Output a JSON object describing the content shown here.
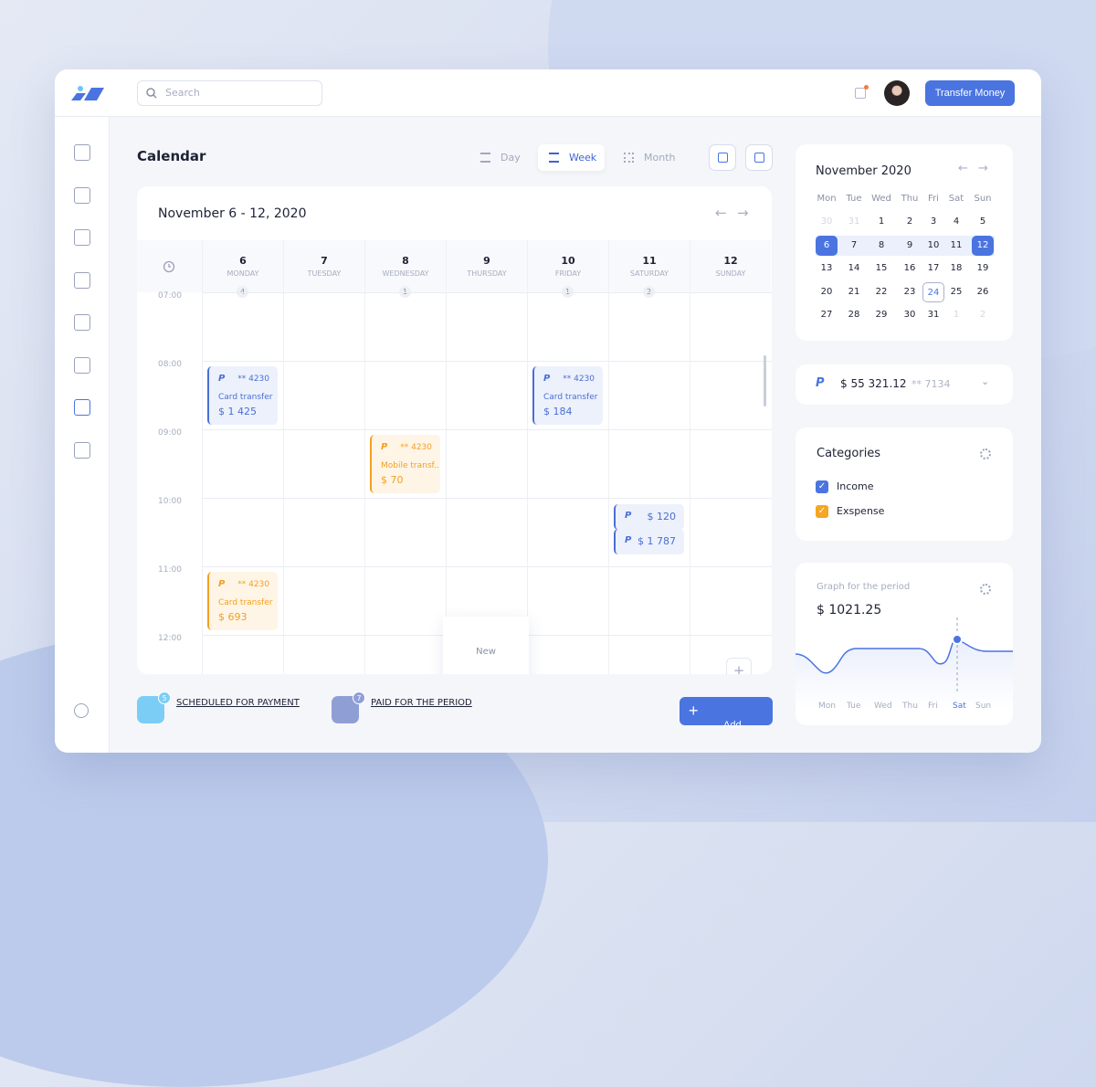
{
  "header": {
    "search_placeholder": "Search",
    "transfer_button": "Transfer Money"
  },
  "sidebar": {
    "items": [
      "dashboard-icon",
      "chart-icon",
      "wallet-icon",
      "exchange-icon",
      "clipboard-icon",
      "buildings-icon",
      "calendar-icon",
      "gear-icon"
    ],
    "active": 6,
    "bottom": "help-icon"
  },
  "main": {
    "title": "Calendar",
    "views": [
      "Day",
      "Week",
      "Month"
    ],
    "active_view": 1,
    "range": "November 6 - 12, 2020",
    "days": [
      {
        "num": "6",
        "name": "MONDAY",
        "count": "4"
      },
      {
        "num": "7",
        "name": "TUESDAY",
        "count": ""
      },
      {
        "num": "8",
        "name": "WEDNESDAY",
        "count": "1"
      },
      {
        "num": "9",
        "name": "THURSDAY",
        "count": ""
      },
      {
        "num": "10",
        "name": "FRIDAY",
        "count": "1"
      },
      {
        "num": "11",
        "name": "SATURDAY",
        "count": "2"
      },
      {
        "num": "12",
        "name": "SUNDAY",
        "count": ""
      }
    ],
    "times": [
      "07:00",
      "08:00",
      "09:00",
      "10:00",
      "11:00",
      "12:00"
    ],
    "events": [
      {
        "day": 0,
        "time": "08:00",
        "color": "blue",
        "account": "** 4230",
        "label": "Card transfer",
        "amount": "$ 1 425"
      },
      {
        "day": 4,
        "time": "08:00",
        "color": "blue",
        "account": "** 4230",
        "label": "Card transfer",
        "amount": "$ 184"
      },
      {
        "day": 2,
        "time": "09:00",
        "color": "orange",
        "account": "** 4230",
        "label": "Mobile transf..",
        "amount": "$ 70"
      },
      {
        "day": 5,
        "time": "10:00",
        "color": "blue",
        "account": "$ 120",
        "small": true
      },
      {
        "day": 5,
        "time": "10:20",
        "color": "blue",
        "account": "$ 1 787",
        "small": true
      },
      {
        "day": 0,
        "time": "11:00",
        "color": "orange",
        "account": "** 4230",
        "label": "Card transfer",
        "amount": "$ 693"
      }
    ],
    "new_label": "New",
    "footer": {
      "scheduled": {
        "label": "SCHEDULED FOR PAYMENT",
        "count": "5"
      },
      "paid": {
        "label": "PAID FOR THE PERIOD",
        "count": "7"
      },
      "add": "Add"
    }
  },
  "mini_calendar": {
    "title": "November 2020",
    "dows": [
      "Mon",
      "Tue",
      "Wed",
      "Thu",
      "Fri",
      "Sat",
      "Sun"
    ],
    "weeks": [
      [
        "30",
        "31",
        "1",
        "2",
        "3",
        "4",
        "5"
      ],
      [
        "6",
        "7",
        "8",
        "9",
        "10",
        "11",
        "12"
      ],
      [
        "13",
        "14",
        "15",
        "16",
        "17",
        "18",
        "19"
      ],
      [
        "20",
        "21",
        "22",
        "23",
        "24",
        "25",
        "26"
      ],
      [
        "27",
        "28",
        "29",
        "30",
        "31",
        "1",
        "2"
      ]
    ],
    "selected_range": [
      "6",
      "12"
    ],
    "today": "24"
  },
  "account": {
    "balance": "$ 55 321.12",
    "number": "** 7134"
  },
  "categories": {
    "title": "Categories",
    "items": [
      {
        "label": "Income",
        "color": "#4a74e0"
      },
      {
        "label": "Exspense",
        "color": "#f5a623"
      }
    ]
  },
  "graph": {
    "title": "Graph for the period",
    "value": "$ 1021.25",
    "days": [
      "Mon",
      "Tue",
      "Wed",
      "Thu",
      "Fri",
      "Sat",
      "Sun"
    ],
    "highlight": "Sat"
  },
  "colors": {
    "accent": "#4a74e0",
    "orange": "#f2a021"
  }
}
